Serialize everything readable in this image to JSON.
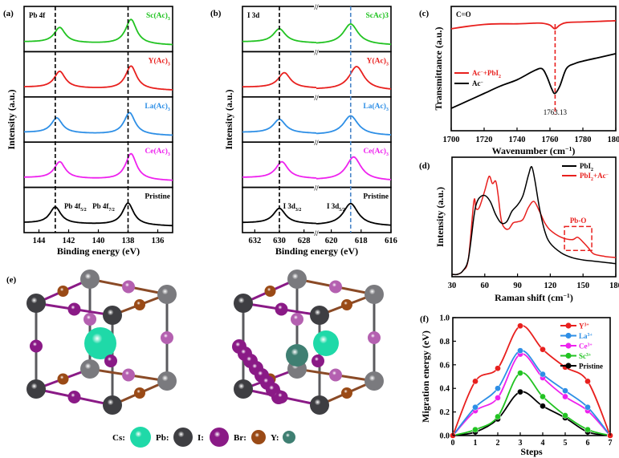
{
  "chart_data": [
    {
      "panel": "(a)",
      "type": "line",
      "title": "Pb 4f",
      "xlabel": "Binding energy (eV)",
      "ylabel": "Intensity (a.u.)",
      "xlim": [
        145,
        135
      ],
      "xticks": [
        144,
        142,
        140,
        138,
        136
      ],
      "reference_lines": [
        142.9,
        138.0
      ],
      "annotations": [
        "Pb 4f5/2",
        "Pb 4f7/2"
      ],
      "series": [
        {
          "name": "Sc(Ac)3",
          "color": "#22c322",
          "peaks": [
            142.6,
            137.8
          ],
          "heights": [
            0.55,
            0.9
          ]
        },
        {
          "name": "Y(Ac)3",
          "color": "#e8201e",
          "peaks": [
            142.6,
            137.8
          ],
          "heights": [
            0.6,
            0.85
          ]
        },
        {
          "name": "La(Ac)3",
          "color": "#2e8fe6",
          "peaks": [
            142.8,
            137.9
          ],
          "heights": [
            0.55,
            0.8
          ]
        },
        {
          "name": "Ce(Ac)3",
          "color": "#ee22ee",
          "peaks": [
            142.6,
            137.8
          ],
          "heights": [
            0.6,
            0.95
          ]
        },
        {
          "name": "Pristine",
          "color": "#000000",
          "peaks": [
            142.9,
            138.0
          ],
          "heights": [
            0.6,
            0.8
          ]
        }
      ]
    },
    {
      "panel": "(b)",
      "type": "line",
      "title": "I 3d",
      "xlabel": "Binding energy (eV)",
      "ylabel": "Intensity (a.u.)",
      "xticks": [
        632,
        630,
        628,
        620,
        618,
        616
      ],
      "broken_axis": [
        627,
        621
      ],
      "reference_lines": [
        630.0,
        618.7
      ],
      "annotations": [
        "I 3d3/2",
        "I 3d5/2"
      ],
      "series": [
        {
          "name": "ScAc)3",
          "color": "#22c322",
          "peaks": [
            630.0,
            618.7
          ],
          "heights": [
            0.5,
            0.75
          ]
        },
        {
          "name": "Y(Ac)3",
          "color": "#e8201e",
          "peaks": [
            629.6,
            618.3
          ],
          "heights": [
            0.55,
            0.85
          ]
        },
        {
          "name": "La(Ac)3",
          "color": "#2e8fe6",
          "peaks": [
            630.0,
            618.7
          ],
          "heights": [
            0.5,
            0.7
          ]
        },
        {
          "name": "Ce(Ac)3",
          "color": "#ee22ee",
          "peaks": [
            629.8,
            618.5
          ],
          "heights": [
            0.6,
            0.85
          ]
        },
        {
          "name": "Pristine",
          "color": "#000000",
          "peaks": [
            630.0,
            618.7
          ],
          "heights": [
            0.55,
            0.8
          ]
        }
      ]
    },
    {
      "panel": "(c)",
      "type": "line",
      "title": "C=O",
      "xlabel": "Wavenumber (cm⁻¹)",
      "ylabel": "Transmittance (a.u.)",
      "xlim": [
        1700,
        1800
      ],
      "xticks": [
        1700,
        1720,
        1740,
        1760,
        1780,
        1800
      ],
      "reference_line": 1763.13,
      "annotation": "1763.13",
      "series": [
        {
          "name": "Ac⁻+PbI2",
          "color": "#e8201e",
          "x": [
            1700,
            1710,
            1720,
            1730,
            1740,
            1750,
            1755,
            1760,
            1763,
            1766,
            1770,
            1780,
            1790,
            1800
          ],
          "y": [
            0.82,
            0.84,
            0.855,
            0.86,
            0.86,
            0.865,
            0.865,
            0.85,
            0.82,
            0.85,
            0.87,
            0.875,
            0.88,
            0.885
          ]
        },
        {
          "name": "Ac⁻",
          "color": "#000000",
          "x": [
            1700,
            1710,
            1720,
            1730,
            1740,
            1750,
            1755,
            1758,
            1761,
            1763,
            1766,
            1770,
            1775,
            1780,
            1790,
            1800
          ],
          "y": [
            0.18,
            0.24,
            0.3,
            0.36,
            0.41,
            0.48,
            0.5,
            0.44,
            0.34,
            0.3,
            0.36,
            0.5,
            0.54,
            0.56,
            0.59,
            0.62
          ]
        }
      ]
    },
    {
      "panel": "(d)",
      "type": "line",
      "xlabel": "Raman shift (cm⁻¹)",
      "ylabel": "Intensity (a.u.)",
      "xlim": [
        30,
        180
      ],
      "xticks": [
        30,
        60,
        90,
        120,
        150,
        180
      ],
      "annotation": "Pb-O",
      "highlight_box": [
        133,
        158
      ],
      "series": [
        {
          "name": "PbI2",
          "color": "#000000",
          "x": [
            30,
            35,
            40,
            45,
            50,
            52,
            55,
            60,
            65,
            70,
            75,
            80,
            85,
            90,
            95,
            100,
            103,
            106,
            110,
            115,
            120,
            130,
            140,
            150,
            160,
            170,
            180
          ],
          "y": [
            0.02,
            0.02,
            0.05,
            0.15,
            0.5,
            0.6,
            0.66,
            0.68,
            0.63,
            0.52,
            0.45,
            0.46,
            0.55,
            0.6,
            0.68,
            0.85,
            0.92,
            0.8,
            0.58,
            0.38,
            0.28,
            0.2,
            0.16,
            0.14,
            0.13,
            0.12,
            0.11
          ]
        },
        {
          "name": "PbI2+Ac⁻",
          "color": "#e8201e",
          "x": [
            30,
            35,
            40,
            45,
            50,
            52,
            55,
            60,
            64,
            67,
            70,
            72,
            75,
            78,
            82,
            86,
            90,
            95,
            100,
            105,
            110,
            115,
            120,
            130,
            140,
            145,
            150,
            155,
            160,
            170,
            180
          ],
          "y": [
            0.02,
            0.02,
            0.05,
            0.15,
            0.63,
            0.57,
            0.58,
            0.72,
            0.84,
            0.78,
            0.8,
            0.7,
            0.48,
            0.41,
            0.4,
            0.45,
            0.46,
            0.48,
            0.58,
            0.63,
            0.55,
            0.45,
            0.39,
            0.33,
            0.31,
            0.33,
            0.29,
            0.24,
            0.19,
            0.17,
            0.16
          ]
        }
      ]
    },
    {
      "panel": "(f)",
      "type": "line",
      "xlabel": "Steps",
      "ylabel": "Migration energy (eV)",
      "xlim": [
        0,
        7
      ],
      "ylim": [
        0,
        1.0
      ],
      "xticks": [
        0,
        1,
        2,
        3,
        4,
        5,
        6,
        7
      ],
      "yticks": [
        "0.0",
        "0.2",
        "0.4",
        "0.6",
        "0.8",
        "1.0"
      ],
      "legend": "top-right",
      "x": [
        0,
        1,
        2,
        3,
        4,
        5,
        6,
        7
      ],
      "series": [
        {
          "name": "Y3+",
          "label_base": "Y",
          "label_sup": "3+",
          "color": "#e8201e",
          "values": [
            0.0,
            0.46,
            0.57,
            0.93,
            0.73,
            0.58,
            0.46,
            0.0
          ]
        },
        {
          "name": "La3+",
          "label_base": "La",
          "label_sup": "3+",
          "color": "#2e8fe6",
          "values": [
            0.0,
            0.24,
            0.4,
            0.72,
            0.52,
            0.38,
            0.24,
            0.0
          ]
        },
        {
          "name": "Ce3+",
          "label_base": "Ce",
          "label_sup": "3+",
          "color": "#ee22ee",
          "values": [
            0.0,
            0.21,
            0.32,
            0.69,
            0.49,
            0.33,
            0.21,
            0.0
          ]
        },
        {
          "name": "Sc3+",
          "label_base": "Sc",
          "label_sup": "3+",
          "color": "#22c322",
          "values": [
            0.0,
            0.05,
            0.16,
            0.53,
            0.33,
            0.17,
            0.05,
            0.0
          ]
        },
        {
          "name": "Pristine",
          "label_base": "Pristine",
          "label_sup": "",
          "color": "#000000",
          "values": [
            0.0,
            0.03,
            0.14,
            0.37,
            0.25,
            0.15,
            0.03,
            0.0
          ]
        }
      ]
    }
  ],
  "panel_e": {
    "label": "(e)",
    "legend": [
      {
        "element": "Cs",
        "color": "#1fd9a8"
      },
      {
        "element": "Pb",
        "color": "#3e3e42"
      },
      {
        "element": "I",
        "color": "#8a1a86"
      },
      {
        "element": "Br",
        "color": "#9a4a16"
      },
      {
        "element": "Y",
        "color": "#3f7f72"
      }
    ]
  }
}
